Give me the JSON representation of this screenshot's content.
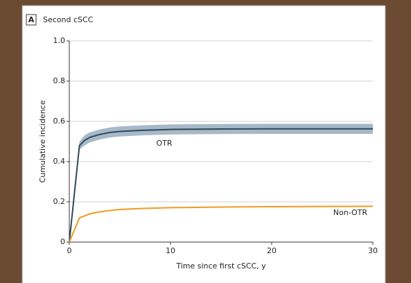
{
  "chart_data": {
    "type": "line",
    "panel_label": "A",
    "title": "Second cSCC",
    "x_label": "Time since first cSCC, y",
    "y_label": "Cumulative incidence",
    "xlim": [
      0,
      30
    ],
    "xticks": [
      0,
      10,
      20,
      30
    ],
    "ylim": [
      0,
      1
    ],
    "yticks": [
      0,
      0.2,
      0.4,
      0.6,
      0.8,
      {
        "value": 1,
        "label": "1.0"
      }
    ],
    "grid": true,
    "x": [
      0,
      1,
      1.5,
      2,
      3,
      4,
      5,
      7,
      10,
      15,
      20,
      25,
      30
    ],
    "series": [
      {
        "name": "OTR",
        "color": "#2f4858",
        "band_color": "#a7b9c8",
        "values": [
          0,
          0.48,
          0.505,
          0.52,
          0.535,
          0.545,
          0.55,
          0.555,
          0.56,
          0.562,
          0.563,
          0.563,
          0.563
        ],
        "lower": [
          0,
          0.46,
          0.48,
          0.495,
          0.51,
          0.52,
          0.525,
          0.53,
          0.535,
          0.537,
          0.538,
          0.538,
          0.538
        ],
        "upper": [
          0,
          0.5,
          0.53,
          0.545,
          0.56,
          0.57,
          0.575,
          0.58,
          0.585,
          0.587,
          0.588,
          0.588,
          0.588
        ]
      },
      {
        "name": "Non-OTR",
        "color": "#f39a1e",
        "values": [
          0,
          0.12,
          0.13,
          0.14,
          0.15,
          0.157,
          0.162,
          0.167,
          0.171,
          0.174,
          0.176,
          0.177,
          0.178
        ]
      }
    ]
  }
}
